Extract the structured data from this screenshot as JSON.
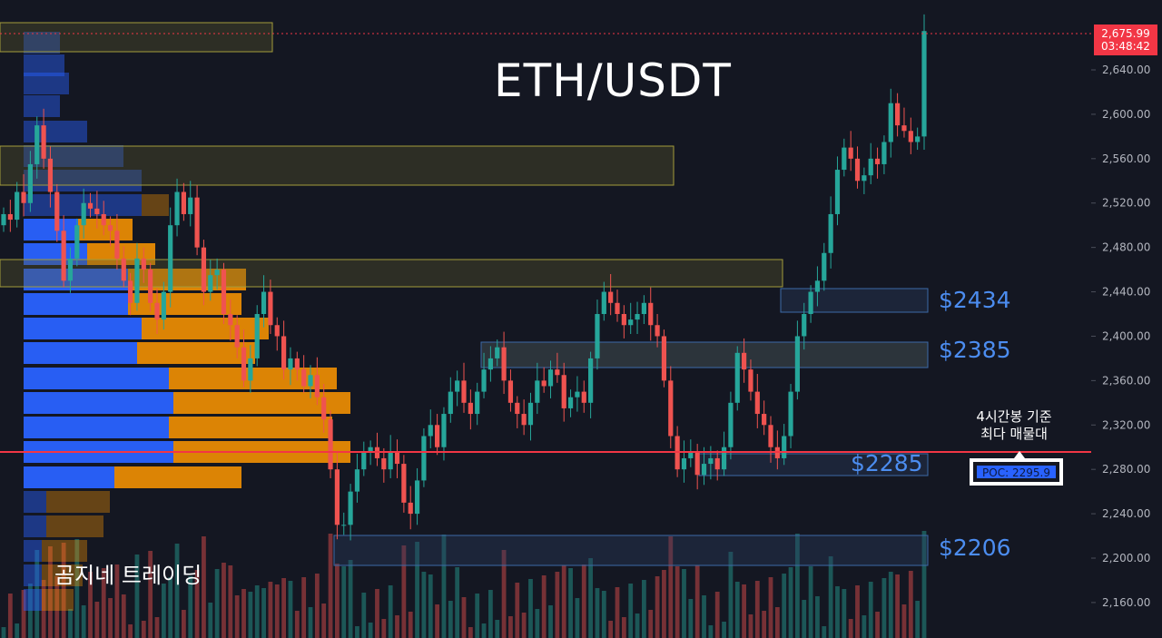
{
  "title": "ETH/USDT",
  "watermark": "곰지네 트레이딩",
  "levels": [
    {
      "label": "$2434",
      "price": 2434
    },
    {
      "label": "$2385",
      "price": 2385
    },
    {
      "label": "$2285",
      "price": 2285
    },
    {
      "label": "$2206",
      "price": 2206
    }
  ],
  "annotation": {
    "line1": "4시간봉 기준",
    "line2": "최다 매물대"
  },
  "poc": {
    "label": "POC: 2295.9",
    "price": 2295.9
  },
  "last_price": {
    "price": "2,675.99",
    "countdown": "03:48:42",
    "value": 2675.99
  },
  "price_axis": {
    "ticks": [
      2160,
      2200,
      2240,
      2280,
      2320,
      2360,
      2400,
      2440,
      2480,
      2520,
      2560,
      2600,
      2640
    ],
    "tick_labels": [
      "2,160.00",
      "2,200.00",
      "2,240.00",
      "2,280.00",
      "2,320.00",
      "2,360.00",
      "2,400.00",
      "2,440.00",
      "2,480.00",
      "2,520.00",
      "2,560.00",
      "2,600.00",
      "2,640.00"
    ]
  },
  "colors": {
    "background": "#141722",
    "up": "#26a69a",
    "down": "#ef5350",
    "poc_line": "#f23645",
    "level_text": "#4c8df0",
    "profile_up": "#2962ff",
    "profile_down": "#ff9800"
  },
  "chart_data": {
    "type": "candlestick",
    "symbol": "ETH/USDT",
    "closes": [
      2510,
      2505,
      2530,
      2520,
      2555,
      2590,
      2560,
      2530,
      2495,
      2450,
      2470,
      2500,
      2520,
      2515,
      2510,
      2500,
      2495,
      2470,
      2450,
      2430,
      2470,
      2460,
      2430,
      2415,
      2440,
      2500,
      2530,
      2510,
      2525,
      2480,
      2440,
      2455,
      2460,
      2420,
      2410,
      2390,
      2360,
      2380,
      2420,
      2440,
      2410,
      2400,
      2370,
      2380,
      2370,
      2355,
      2365,
      2345,
      2325,
      2280,
      2230,
      2230,
      2260,
      2280,
      2295,
      2300,
      2290,
      2280,
      2295,
      2285,
      2250,
      2240,
      2270,
      2310,
      2320,
      2300,
      2330,
      2350,
      2360,
      2340,
      2330,
      2350,
      2370,
      2380,
      2390,
      2360,
      2340,
      2330,
      2320,
      2340,
      2360,
      2355,
      2370,
      2365,
      2335,
      2345,
      2350,
      2340,
      2380,
      2420,
      2440,
      2430,
      2420,
      2410,
      2415,
      2420,
      2430,
      2410,
      2400,
      2360,
      2310,
      2280,
      2290,
      2295,
      2275,
      2285,
      2290,
      2280,
      2300,
      2340,
      2385,
      2370,
      2350,
      2330,
      2320,
      2300,
      2290,
      2310,
      2350,
      2400,
      2420,
      2440,
      2450,
      2475,
      2510,
      2550,
      2570,
      2560,
      2540,
      2545,
      2560,
      2555,
      2575,
      2610,
      2590,
      2585,
      2575,
      2580,
      2675
    ]
  }
}
